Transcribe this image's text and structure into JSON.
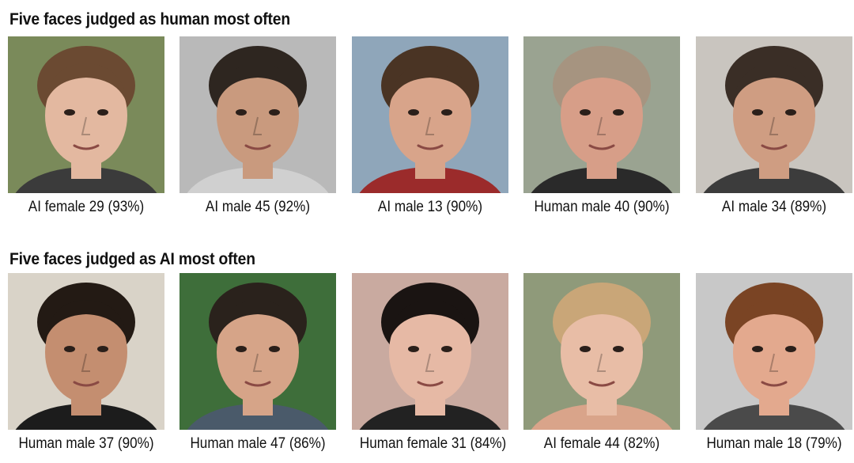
{
  "sections": [
    {
      "title": "Five faces judged as human most often",
      "faces": [
        {
          "label": "AI female 29 (93%)",
          "bg": "#7a8a5a",
          "skin": "#e3b8a0",
          "hair": "#6b4a32",
          "shirt": "#3b3b3b"
        },
        {
          "label": "AI male 45 (92%)",
          "bg": "#b9b9b9",
          "skin": "#c99a7e",
          "hair": "#2e2620",
          "shirt": "#d0d0d0"
        },
        {
          "label": "AI male 13 (90%)",
          "bg": "#8fa6ba",
          "skin": "#d8a48a",
          "hair": "#4a3424",
          "shirt": "#9b2b2b"
        },
        {
          "label": "Human male 40 (90%)",
          "bg": "#9aa391",
          "skin": "#d79e88",
          "hair": "#a69480",
          "shirt": "#2a2a2a"
        },
        {
          "label": "AI male 34 (89%)",
          "bg": "#c9c5bf",
          "skin": "#cf9d82",
          "hair": "#3a2e26",
          "shirt": "#3c3c3c"
        }
      ]
    },
    {
      "title": "Five faces judged as AI most often",
      "faces": [
        {
          "label": "Human male 37 (90%)",
          "bg": "#d9d3c8",
          "skin": "#c48e70",
          "hair": "#231a14",
          "shirt": "#1c1c1c"
        },
        {
          "label": "Human male 47 (86%)",
          "bg": "#3e6e3a",
          "skin": "#d6a488",
          "hair": "#2a221c",
          "shirt": "#4a5a6a"
        },
        {
          "label": "Human female 31 (84%)",
          "bg": "#c9aaa0",
          "skin": "#e6b9a5",
          "hair": "#1a1412",
          "shirt": "#222222"
        },
        {
          "label": "AI female 44 (82%)",
          "bg": "#8f9a7a",
          "skin": "#e8bda6",
          "hair": "#c9a678",
          "shirt": "#d9a48a"
        },
        {
          "label": "Human male 18 (79%)",
          "bg": "#c8c8c8",
          "skin": "#e3a98e",
          "hair": "#7a4424",
          "shirt": "#4a4a4a"
        }
      ]
    }
  ]
}
